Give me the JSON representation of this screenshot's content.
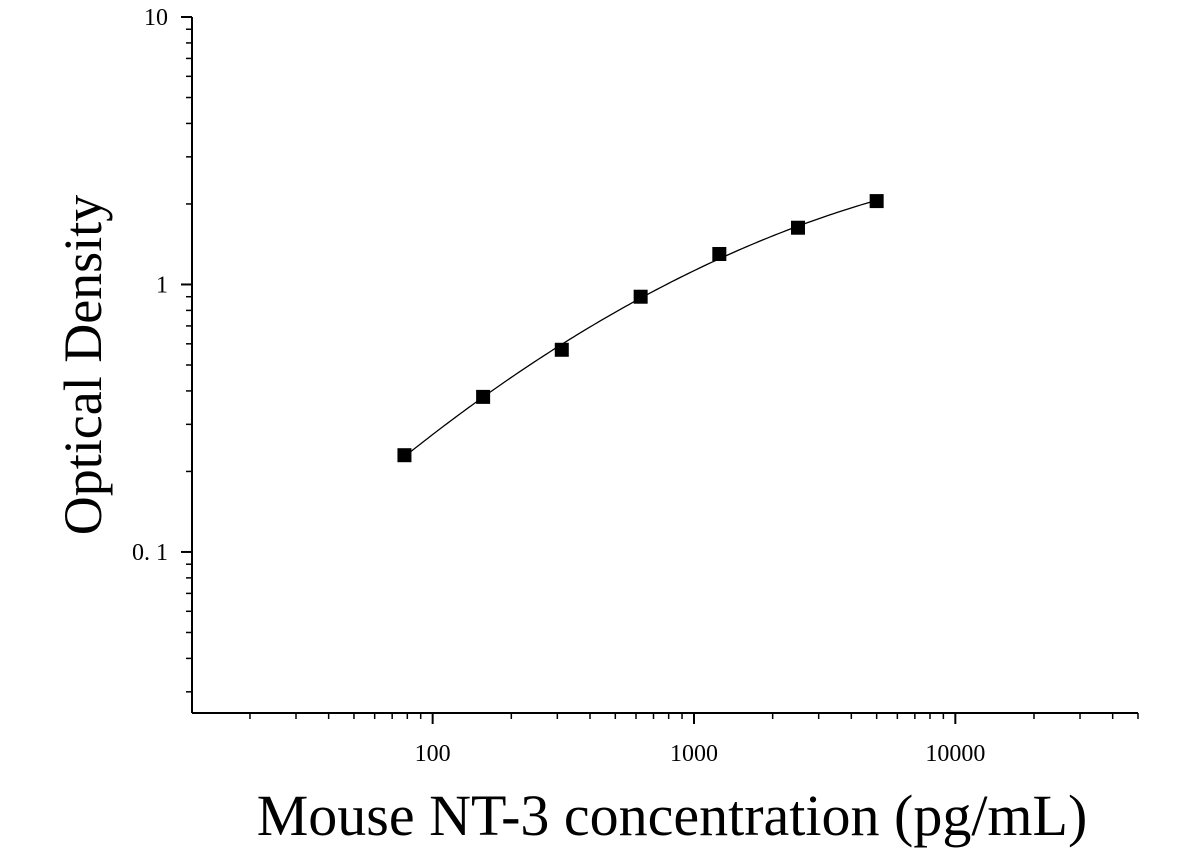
{
  "chart_data": {
    "type": "scatter",
    "title": "",
    "xlabel": "Mouse NT-3 concentration (pg/mL)",
    "ylabel": "Optical Density",
    "x_scale": "log",
    "y_scale": "log",
    "xlim": [
      12,
      50000
    ],
    "ylim": [
      0.025,
      10
    ],
    "x_ticks": [
      {
        "value": 100,
        "label": "100"
      },
      {
        "value": 1000,
        "label": "1000"
      },
      {
        "value": 10000,
        "label": "10000"
      }
    ],
    "y_ticks": [
      {
        "value": 0.1,
        "label": "0. 1"
      },
      {
        "value": 1,
        "label": "1"
      },
      {
        "value": 10,
        "label": "10"
      }
    ],
    "grid": false,
    "legend": "none",
    "marker": "square",
    "marker_color": "#000000",
    "line_color": "#000000",
    "fit_curve": true,
    "series": [
      {
        "x": [
          78,
          156,
          312,
          625,
          1250,
          2500,
          5000
        ],
        "y": [
          0.23,
          0.38,
          0.57,
          0.9,
          1.3,
          1.63,
          2.05
        ]
      }
    ]
  }
}
